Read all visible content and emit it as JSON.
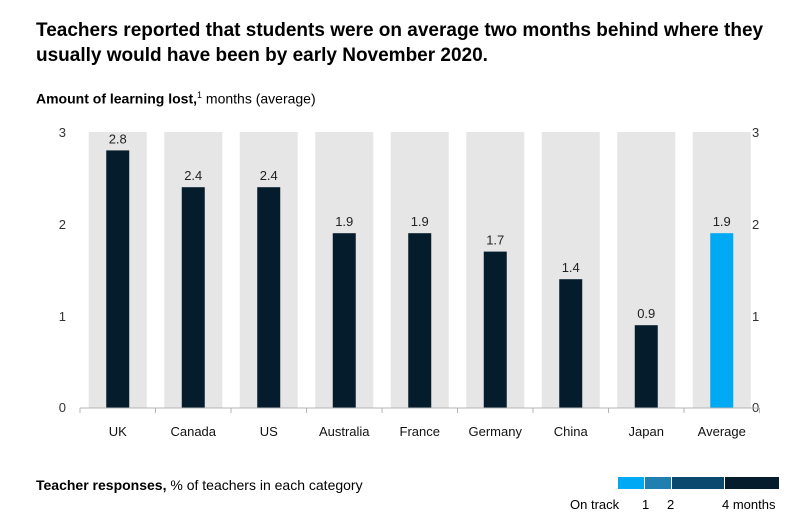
{
  "title": "Teachers reported that students were on average two months behind where they usually would have been by early November 2020.",
  "subtitle": {
    "bold": "Amount of learning lost,",
    "sup": "1",
    "rest": " months (average)"
  },
  "colors": {
    "bar": "#051c2c",
    "highlight": "#00a9f4",
    "track": "#e6e6e6",
    "axis": "#b3b3b3"
  },
  "chart_data": {
    "type": "bar",
    "categories": [
      "UK",
      "Canada",
      "US",
      "Australia",
      "France",
      "Germany",
      "China",
      "Japan",
      "Average"
    ],
    "values": [
      2.8,
      2.4,
      2.4,
      1.9,
      1.9,
      1.7,
      1.4,
      0.9,
      1.9
    ],
    "value_labels": [
      "2.8",
      "2.4",
      "2.4",
      "1.9",
      "1.9",
      "1.7",
      "1.4",
      "0.9",
      "1.9"
    ],
    "highlight_index": 8,
    "ylim": [
      0,
      3
    ],
    "yticks": [
      "0",
      "1",
      "2",
      "3"
    ],
    "grid": false
  },
  "responses": {
    "label_bold": "Teacher responses,",
    "label_rest": " % of teachers in each category"
  },
  "legend": {
    "items": [
      "On track",
      "1",
      "2",
      "4 months"
    ],
    "colors": [
      "#00a9f4",
      "#1f7fb0",
      "#0b4a6e",
      "#051c2c"
    ]
  }
}
